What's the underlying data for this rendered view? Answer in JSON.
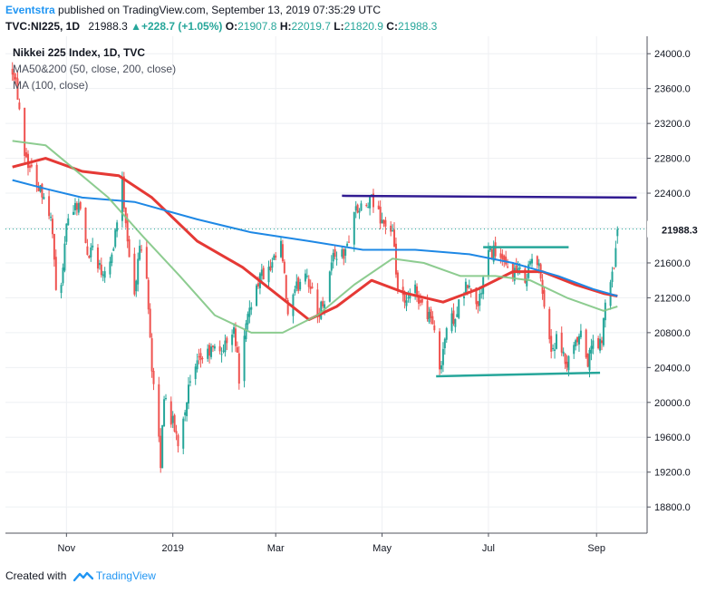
{
  "header": {
    "author": "Eventstra",
    "published": "published on TradingView.com, September 13, 2019 07:35:29 UTC",
    "symbol": "TVC:NI225, 1D",
    "last": "21988.3",
    "change": "+228.7 (+1.05%)",
    "o_label": "O:",
    "o_value": "21907.8",
    "h_label": "H:",
    "h_value": "22019.7",
    "l_label": "L:",
    "l_value": "21820.9",
    "c_label": "C:",
    "c_value": "21988.3"
  },
  "legend": {
    "title": "Nikkei 225 Index, 1D, TVC",
    "ma1": "MA50&200 (50, close, 200, close)",
    "ma2": "MA (100, close)"
  },
  "footer": {
    "created_with": "Created with",
    "brand": "TradingView"
  },
  "colors": {
    "up": "#26a69a",
    "down": "#ef5350",
    "ma50": "#e53935",
    "ma200": "#1e88e5",
    "ma100": "#81c784",
    "trendline_top": "#311b92",
    "trendline_support": "#26a69a",
    "price_label_bg": "#ffffff"
  },
  "chart_data": {
    "type": "candlestick",
    "title": "Nikkei 225 Index, 1D, TVC",
    "y_ticks": [
      "18800.0",
      "19200.0",
      "19600.0",
      "20000.0",
      "20400.0",
      "20800.0",
      "21200.0",
      "21600.0",
      "22000.0",
      "22400.0",
      "22800.0",
      "23200.0",
      "23600.0",
      "24000.0"
    ],
    "x_ticks": [
      "Nov",
      "2019",
      "Mar",
      "May",
      "Jul",
      "Sep"
    ],
    "ylim": [
      18500,
      24200
    ],
    "current_price_label": "21988.3",
    "close_path": [
      [
        "2018-10-01",
        23850
      ],
      [
        "2018-10-03",
        23700
      ],
      [
        "2018-10-08",
        22900
      ],
      [
        "2018-10-11",
        22700
      ],
      [
        "2018-10-16",
        22500
      ],
      [
        "2018-10-19",
        22400
      ],
      [
        "2018-10-24",
        22000
      ],
      [
        "2018-10-26",
        21200
      ],
      [
        "2018-10-30",
        21500
      ],
      [
        "2018-11-02",
        22200
      ],
      [
        "2018-11-08",
        22300
      ],
      [
        "2018-11-13",
        21700
      ],
      [
        "2018-11-16",
        21800
      ],
      [
        "2018-11-21",
        21500
      ],
      [
        "2018-11-27",
        21700
      ],
      [
        "2018-12-03",
        22500
      ],
      [
        "2018-12-06",
        21900
      ],
      [
        "2018-12-10",
        21200
      ],
      [
        "2018-12-13",
        21800
      ],
      [
        "2018-12-17",
        21500
      ],
      [
        "2018-12-20",
        20400
      ],
      [
        "2018-12-25",
        19300
      ],
      [
        "2018-12-27",
        20100
      ],
      [
        "2019-01-04",
        19550
      ],
      [
        "2019-01-10",
        20150
      ],
      [
        "2019-01-17",
        20500
      ],
      [
        "2019-01-24",
        20600
      ],
      [
        "2019-01-30",
        20600
      ],
      [
        "2019-02-05",
        20900
      ],
      [
        "2019-02-08",
        20300
      ],
      [
        "2019-02-14",
        21100
      ],
      [
        "2019-02-20",
        21450
      ],
      [
        "2019-02-26",
        21500
      ],
      [
        "2019-03-04",
        21800
      ],
      [
        "2019-03-08",
        21000
      ],
      [
        "2019-03-13",
        21300
      ],
      [
        "2019-03-18",
        21550
      ],
      [
        "2019-03-25",
        21000
      ],
      [
        "2019-03-29",
        21200
      ],
      [
        "2019-04-03",
        21700
      ],
      [
        "2019-04-10",
        21700
      ],
      [
        "2019-04-15",
        22200
      ],
      [
        "2019-04-19",
        22200
      ],
      [
        "2019-04-25",
        22300
      ],
      [
        "2019-05-07",
        21900
      ],
      [
        "2019-05-10",
        21300
      ],
      [
        "2019-05-14",
        21100
      ],
      [
        "2019-05-20",
        21300
      ],
      [
        "2019-05-24",
        21100
      ],
      [
        "2019-05-29",
        21000
      ],
      [
        "2019-06-03",
        20400
      ],
      [
        "2019-06-07",
        20850
      ],
      [
        "2019-06-13",
        21050
      ],
      [
        "2019-06-19",
        21350
      ],
      [
        "2019-06-25",
        21100
      ],
      [
        "2019-07-01",
        21700
      ],
      [
        "2019-07-05",
        21750
      ],
      [
        "2019-07-10",
        21550
      ],
      [
        "2019-07-16",
        21500
      ],
      [
        "2019-07-22",
        21450
      ],
      [
        "2019-07-26",
        21650
      ],
      [
        "2019-07-31",
        21500
      ],
      [
        "2019-08-02",
        21100
      ],
      [
        "2019-08-06",
        20600
      ],
      [
        "2019-08-09",
        20700
      ],
      [
        "2019-08-15",
        20400
      ],
      [
        "2019-08-20",
        20650
      ],
      [
        "2019-08-23",
        20750
      ],
      [
        "2019-08-27",
        20450
      ],
      [
        "2019-08-30",
        20700
      ],
      [
        "2019-09-04",
        20650
      ],
      [
        "2019-09-06",
        21200
      ],
      [
        "2019-09-09",
        21300
      ],
      [
        "2019-09-11",
        21600
      ],
      [
        "2019-09-13",
        21988.3
      ]
    ],
    "series": [
      {
        "name": "MA 50",
        "type": "line",
        "points": [
          [
            "2018-10-01",
            22700
          ],
          [
            "2018-10-20",
            22800
          ],
          [
            "2018-11-10",
            22650
          ],
          [
            "2018-12-01",
            22600
          ],
          [
            "2018-12-20",
            22350
          ],
          [
            "2019-01-15",
            21850
          ],
          [
            "2019-02-10",
            21550
          ],
          [
            "2019-03-01",
            21250
          ],
          [
            "2019-03-20",
            20950
          ],
          [
            "2019-04-05",
            21100
          ],
          [
            "2019-04-25",
            21400
          ],
          [
            "2019-05-15",
            21250
          ],
          [
            "2019-06-05",
            21150
          ],
          [
            "2019-06-25",
            21300
          ],
          [
            "2019-07-15",
            21500
          ],
          [
            "2019-08-01",
            21500
          ],
          [
            "2019-08-20",
            21350
          ],
          [
            "2019-09-05",
            21250
          ],
          [
            "2019-09-13",
            21220
          ]
        ]
      },
      {
        "name": "MA 200",
        "type": "line",
        "points": [
          [
            "2018-10-01",
            22550
          ],
          [
            "2018-10-20",
            22450
          ],
          [
            "2018-11-10",
            22350
          ],
          [
            "2018-12-10",
            22300
          ],
          [
            "2019-01-15",
            22100
          ],
          [
            "2019-02-15",
            21950
          ],
          [
            "2019-03-20",
            21850
          ],
          [
            "2019-04-20",
            21750
          ],
          [
            "2019-05-20",
            21750
          ],
          [
            "2019-06-20",
            21700
          ],
          [
            "2019-07-15",
            21600
          ],
          [
            "2019-08-10",
            21450
          ],
          [
            "2019-08-30",
            21300
          ],
          [
            "2019-09-13",
            21220
          ]
        ]
      },
      {
        "name": "MA 100",
        "type": "line",
        "points": [
          [
            "2018-10-01",
            23000
          ],
          [
            "2018-10-20",
            22950
          ],
          [
            "2018-11-10",
            22600
          ],
          [
            "2018-11-25",
            22350
          ],
          [
            "2018-12-15",
            21900
          ],
          [
            "2019-01-05",
            21450
          ],
          [
            "2019-01-25",
            21000
          ],
          [
            "2019-02-15",
            20800
          ],
          [
            "2019-03-05",
            20800
          ],
          [
            "2019-03-25",
            21000
          ],
          [
            "2019-04-15",
            21350
          ],
          [
            "2019-05-07",
            21650
          ],
          [
            "2019-05-25",
            21600
          ],
          [
            "2019-06-15",
            21450
          ],
          [
            "2019-07-05",
            21450
          ],
          [
            "2019-07-25",
            21400
          ],
          [
            "2019-08-15",
            21200
          ],
          [
            "2019-09-05",
            21050
          ],
          [
            "2019-09-13",
            21100
          ]
        ]
      }
    ],
    "trendlines": [
      {
        "name": "resistance",
        "points": [
          [
            "2019-04-08",
            22370
          ],
          [
            "2019-09-24",
            22350
          ]
        ]
      },
      {
        "name": "range-top",
        "points": [
          [
            "2019-06-28",
            21780
          ],
          [
            "2019-08-16",
            21780
          ]
        ]
      },
      {
        "name": "support",
        "points": [
          [
            "2019-06-01",
            20300
          ],
          [
            "2019-09-03",
            20340
          ]
        ]
      }
    ]
  }
}
